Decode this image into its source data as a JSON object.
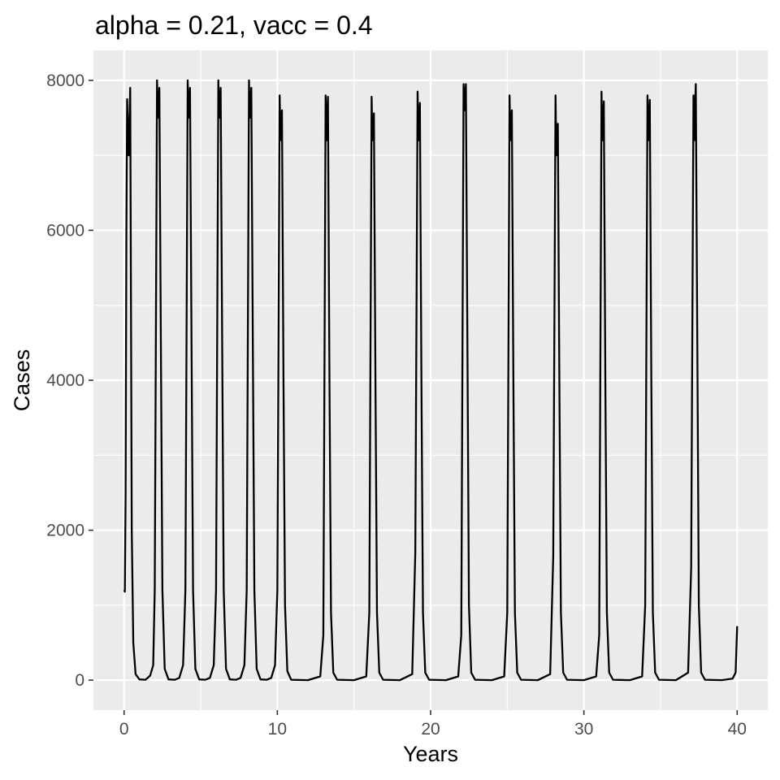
{
  "chart_data": {
    "type": "line",
    "title": "alpha = 0.21, vacc = 0.4",
    "xlabel": "Years",
    "ylabel": "Cases",
    "xlim": [
      -2,
      42
    ],
    "ylim": [
      -400,
      8400
    ],
    "x_ticks": [
      0,
      10,
      20,
      30,
      40
    ],
    "y_ticks": [
      0,
      2000,
      4000,
      6000,
      8000
    ],
    "x_tick_labels": [
      "0",
      "10",
      "20",
      "30",
      "40"
    ],
    "y_tick_labels": [
      "0",
      "2000",
      "4000",
      "6000",
      "8000"
    ],
    "grid": true,
    "legend": "none",
    "colors": {
      "panel": "#ebebeb",
      "grid": "#ffffff",
      "line": "#000000",
      "tick_text": "#4d4d4d"
    },
    "series": [
      {
        "points": [
          [
            0.0,
            1200
          ],
          [
            0.05,
            1180
          ],
          [
            0.1,
            2500
          ],
          [
            0.15,
            6000
          ],
          [
            0.2,
            7750
          ],
          [
            0.25,
            7300
          ],
          [
            0.3,
            7000
          ],
          [
            0.4,
            7900
          ],
          [
            0.45,
            5000
          ],
          [
            0.5,
            2000
          ],
          [
            0.6,
            500
          ],
          [
            0.75,
            80
          ],
          [
            1.0,
            10
          ],
          [
            1.4,
            5
          ],
          [
            1.7,
            60
          ],
          [
            1.9,
            200
          ],
          [
            2.0,
            1200
          ],
          [
            2.15,
            8000
          ],
          [
            2.2,
            7500
          ],
          [
            2.3,
            7900
          ],
          [
            2.4,
            4500
          ],
          [
            2.5,
            1200
          ],
          [
            2.65,
            150
          ],
          [
            2.9,
            10
          ],
          [
            3.3,
            5
          ],
          [
            3.6,
            30
          ],
          [
            3.85,
            200
          ],
          [
            4.0,
            1200
          ],
          [
            4.15,
            8000
          ],
          [
            4.2,
            7500
          ],
          [
            4.3,
            7900
          ],
          [
            4.4,
            4500
          ],
          [
            4.5,
            1200
          ],
          [
            4.65,
            150
          ],
          [
            4.9,
            10
          ],
          [
            5.3,
            5
          ],
          [
            5.6,
            30
          ],
          [
            5.85,
            200
          ],
          [
            6.0,
            1200
          ],
          [
            6.15,
            8000
          ],
          [
            6.2,
            7500
          ],
          [
            6.3,
            7900
          ],
          [
            6.4,
            4500
          ],
          [
            6.5,
            1200
          ],
          [
            6.65,
            150
          ],
          [
            6.9,
            10
          ],
          [
            7.3,
            5
          ],
          [
            7.6,
            30
          ],
          [
            7.85,
            200
          ],
          [
            8.0,
            1200
          ],
          [
            8.15,
            8000
          ],
          [
            8.2,
            7500
          ],
          [
            8.3,
            7900
          ],
          [
            8.4,
            4500
          ],
          [
            8.5,
            1200
          ],
          [
            8.65,
            150
          ],
          [
            8.9,
            10
          ],
          [
            9.3,
            5
          ],
          [
            9.6,
            30
          ],
          [
            9.85,
            200
          ],
          [
            10.0,
            1200
          ],
          [
            10.15,
            7800
          ],
          [
            10.2,
            7200
          ],
          [
            10.3,
            7600
          ],
          [
            10.4,
            4000
          ],
          [
            10.5,
            1000
          ],
          [
            10.65,
            120
          ],
          [
            10.9,
            5
          ],
          [
            12.0,
            0
          ],
          [
            12.8,
            50
          ],
          [
            13.0,
            600
          ],
          [
            13.15,
            7800
          ],
          [
            13.2,
            7200
          ],
          [
            13.3,
            7780
          ],
          [
            13.4,
            4000
          ],
          [
            13.5,
            900
          ],
          [
            13.65,
            100
          ],
          [
            13.9,
            5
          ],
          [
            15.0,
            0
          ],
          [
            15.8,
            50
          ],
          [
            16.0,
            900
          ],
          [
            16.15,
            7780
          ],
          [
            16.2,
            7200
          ],
          [
            16.3,
            7560
          ],
          [
            16.4,
            4000
          ],
          [
            16.5,
            900
          ],
          [
            16.65,
            100
          ],
          [
            16.9,
            5
          ],
          [
            18.0,
            0
          ],
          [
            18.8,
            80
          ],
          [
            19.0,
            1700
          ],
          [
            19.15,
            7850
          ],
          [
            19.2,
            7200
          ],
          [
            19.3,
            7700
          ],
          [
            19.4,
            4000
          ],
          [
            19.5,
            900
          ],
          [
            19.65,
            100
          ],
          [
            19.9,
            5
          ],
          [
            21.0,
            0
          ],
          [
            21.8,
            50
          ],
          [
            22.0,
            600
          ],
          [
            22.15,
            7950
          ],
          [
            22.2,
            7600
          ],
          [
            22.3,
            7950
          ],
          [
            22.4,
            4500
          ],
          [
            22.5,
            1000
          ],
          [
            22.65,
            100
          ],
          [
            22.9,
            5
          ],
          [
            24.0,
            0
          ],
          [
            24.8,
            50
          ],
          [
            25.0,
            900
          ],
          [
            25.15,
            7800
          ],
          [
            25.2,
            7200
          ],
          [
            25.3,
            7600
          ],
          [
            25.4,
            4000
          ],
          [
            25.5,
            900
          ],
          [
            25.65,
            100
          ],
          [
            25.9,
            5
          ],
          [
            27.0,
            0
          ],
          [
            27.8,
            80
          ],
          [
            28.0,
            1650
          ],
          [
            28.15,
            7800
          ],
          [
            28.2,
            7000
          ],
          [
            28.3,
            7420
          ],
          [
            28.4,
            4000
          ],
          [
            28.5,
            900
          ],
          [
            28.65,
            100
          ],
          [
            28.9,
            5
          ],
          [
            30.0,
            0
          ],
          [
            30.8,
            50
          ],
          [
            31.0,
            600
          ],
          [
            31.15,
            7850
          ],
          [
            31.2,
            7200
          ],
          [
            31.3,
            7720
          ],
          [
            31.4,
            4000
          ],
          [
            31.5,
            900
          ],
          [
            31.65,
            100
          ],
          [
            31.9,
            5
          ],
          [
            33.0,
            0
          ],
          [
            33.8,
            50
          ],
          [
            34.0,
            1000
          ],
          [
            34.15,
            7800
          ],
          [
            34.2,
            7200
          ],
          [
            34.3,
            7740
          ],
          [
            34.4,
            4000
          ],
          [
            34.5,
            900
          ],
          [
            34.65,
            100
          ],
          [
            34.9,
            5
          ],
          [
            36.0,
            0
          ],
          [
            36.8,
            100
          ],
          [
            37.0,
            1500
          ],
          [
            37.15,
            7800
          ],
          [
            37.2,
            7200
          ],
          [
            37.3,
            7950
          ],
          [
            37.4,
            4500
          ],
          [
            37.5,
            1000
          ],
          [
            37.65,
            100
          ],
          [
            37.9,
            5
          ],
          [
            39.0,
            0
          ],
          [
            39.7,
            20
          ],
          [
            39.9,
            100
          ],
          [
            40.0,
            720
          ]
        ]
      }
    ]
  }
}
